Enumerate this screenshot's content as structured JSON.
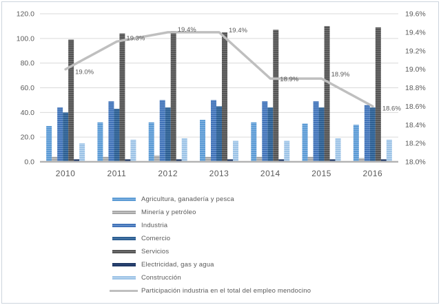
{
  "window": {
    "background": "#ffffff",
    "border_color": "#ccd4dd"
  },
  "chart_data": {
    "type": "bar",
    "subtype": "grouped-bars-with-line-overlay",
    "title": "",
    "xlabel": "",
    "ylabel": "",
    "categories": [
      "2010",
      "2011",
      "2012",
      "2013",
      "2014",
      "2015",
      "2016"
    ],
    "series": [
      {
        "name": "Agricultura, ganadería y pesca",
        "values": [
          29,
          32,
          32,
          34,
          32,
          31,
          30
        ],
        "color": "#5b9bd5",
        "stripe": "#8ab6e2"
      },
      {
        "name": "Minería y petróleo",
        "values": [
          4,
          4,
          5,
          4,
          4,
          4,
          3
        ],
        "color": "#a6a6a6",
        "stripe": "#cbcbcb"
      },
      {
        "name": "Industria",
        "values": [
          44,
          49,
          50,
          50,
          49,
          49,
          46
        ],
        "color": "#4273b8",
        "stripe": "#6f99cf"
      },
      {
        "name": "Comercio",
        "values": [
          40,
          43,
          44,
          45,
          44,
          44,
          44
        ],
        "color": "#2e5f92",
        "stripe": "#4d7dab"
      },
      {
        "name": "Servicios",
        "values": [
          99,
          104,
          106,
          105,
          107,
          110,
          109
        ],
        "color": "#555555",
        "stripe": "#767676"
      },
      {
        "name": "Electricidad, gas y agua",
        "values": [
          2,
          2,
          2,
          2,
          2,
          2,
          2
        ],
        "color": "#1f3864",
        "stripe": "#30497a"
      },
      {
        "name": "Construcción",
        "values": [
          15,
          18,
          19,
          17,
          17,
          19,
          18
        ],
        "color": "#9dc3e6",
        "stripe": "#c1daf1"
      }
    ],
    "line_series": {
      "name": "Participación industria en el total del empleo mendocino",
      "axis": "right",
      "values": [
        19.0,
        19.3,
        19.4,
        19.4,
        18.9,
        18.9,
        18.6
      ],
      "labels": [
        "19.0%",
        "19.3%",
        "19.4%",
        "19.4%",
        "18.9%",
        "18.9%",
        "18.6%"
      ],
      "label_dy": [
        4,
        -5,
        -4,
        -3,
        1,
        -6,
        3
      ],
      "color": "#bfbfbf"
    },
    "left_axis": {
      "min": 0,
      "max": 120,
      "ticks": [
        "120.0",
        "100.0",
        "80.0",
        "60.0",
        "40.0",
        "20.0",
        "0.0"
      ]
    },
    "right_axis": {
      "min": 18.0,
      "max": 19.6,
      "ticks": [
        "19.6%",
        "19.4%",
        "19.2%",
        "19.0%",
        "18.8%",
        "18.6%",
        "18.4%",
        "18.2%",
        "18.0%"
      ]
    },
    "grid": true,
    "legend_position": "bottom",
    "style": {
      "grid_color": "#d9d9d9",
      "axis_line_color": "#b3b3b3",
      "tick_text_color": "#595959",
      "data_label_color": "#404040"
    }
  }
}
